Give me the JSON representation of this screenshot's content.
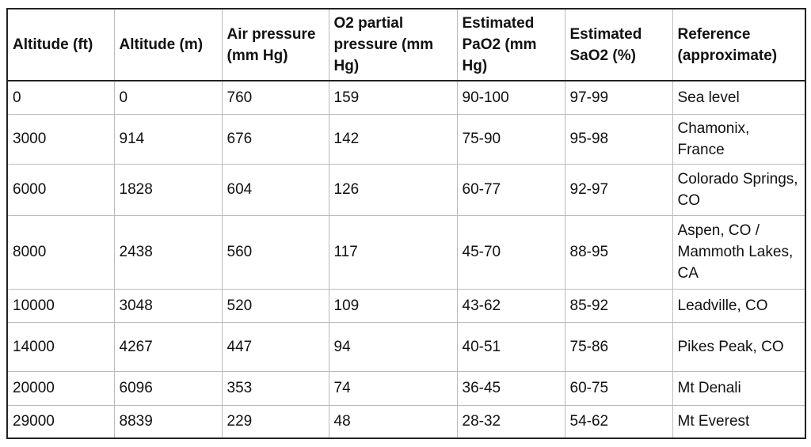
{
  "table": {
    "header": [
      "Altitude (ft)",
      "Altitude (m)",
      "Air pressure (mm Hg)",
      "O2 partial pressure (mm Hg)",
      "Estimated PaO2 (mm Hg)",
      "Estimated SaO2 (%)",
      "Reference (approximate)"
    ],
    "rows": [
      [
        "0",
        "0",
        "760",
        "159",
        "90-100",
        "97-99",
        "Sea level"
      ],
      [
        "3000",
        "914",
        "676",
        "142",
        "75-90",
        "95-98",
        "Chamonix, France"
      ],
      [
        "6000",
        "1828",
        "604",
        "126",
        "60-77",
        "92-97",
        "Colorado Springs, CO"
      ],
      [
        "8000",
        "2438",
        "560",
        "117",
        "45-70",
        "88-95",
        "Aspen, CO / Mammoth Lakes, CA"
      ],
      [
        "10000",
        "3048",
        "520",
        "109",
        "43-62",
        "85-92",
        "Leadville, CO"
      ],
      [
        "14000",
        "4267",
        "447",
        "94",
        "40-51",
        "75-86",
        "Pikes Peak, CO"
      ],
      [
        "20000",
        "6096",
        "353",
        "74",
        "36-45",
        "60-75",
        "Mt Denali"
      ],
      [
        "29000",
        "8839",
        "229",
        "48",
        "28-32",
        "54-62",
        "Mt Everest"
      ]
    ]
  }
}
